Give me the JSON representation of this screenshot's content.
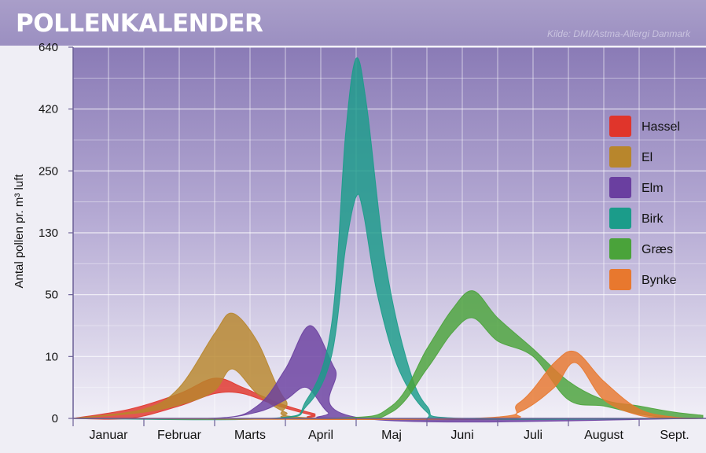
{
  "header": {
    "title": "POLLENKALENDER",
    "source": "Kilde: DMI/Astma-Allergi Danmark"
  },
  "chart_data": {
    "type": "area",
    "title": "POLLENKALENDER",
    "ylabel": "Antal pollen pr. m³ luft",
    "xlabel": "",
    "yticks": [
      0,
      10,
      50,
      130,
      250,
      420,
      640
    ],
    "categories": [
      "Januar",
      "Februar",
      "Marts",
      "April",
      "Maj",
      "Juni",
      "Juli",
      "August",
      "Sept."
    ],
    "x_unit": "month (0 = start of Januar)",
    "legend_position": "right",
    "grid": true,
    "series": [
      {
        "name": "Hassel",
        "color": "#e0352b",
        "lower": [
          [
            0.0,
            0
          ],
          [
            0.8,
            0
          ],
          [
            1.5,
            2
          ],
          [
            2.0,
            4
          ],
          [
            2.4,
            4
          ],
          [
            2.9,
            2
          ],
          [
            3.4,
            0.5
          ],
          [
            3.8,
            0
          ],
          [
            8.9,
            0
          ]
        ],
        "upper": [
          [
            0.0,
            0
          ],
          [
            0.8,
            1.5
          ],
          [
            1.5,
            4
          ],
          [
            2.0,
            6.5
          ],
          [
            2.4,
            5
          ],
          [
            2.9,
            2.5
          ],
          [
            3.4,
            0.8
          ],
          [
            3.8,
            0
          ],
          [
            8.9,
            0
          ]
        ]
      },
      {
        "name": "El",
        "color": "#b8862c",
        "lower": [
          [
            0.0,
            0
          ],
          [
            1.0,
            1
          ],
          [
            1.6,
            2.5
          ],
          [
            2.0,
            4.5
          ],
          [
            2.25,
            8
          ],
          [
            2.6,
            4
          ],
          [
            3.0,
            1
          ],
          [
            3.5,
            0
          ],
          [
            8.9,
            0
          ]
        ],
        "upper": [
          [
            0.0,
            0
          ],
          [
            1.0,
            1.5
          ],
          [
            1.5,
            5
          ],
          [
            2.0,
            25
          ],
          [
            2.25,
            38
          ],
          [
            2.6,
            20
          ],
          [
            3.0,
            3
          ],
          [
            3.5,
            0
          ],
          [
            8.9,
            0
          ]
        ]
      },
      {
        "name": "Elm",
        "color": "#6a3fa0",
        "lower": [
          [
            0.0,
            0
          ],
          [
            1.9,
            0
          ],
          [
            2.6,
            1
          ],
          [
            3.0,
            3
          ],
          [
            3.3,
            5
          ],
          [
            3.6,
            1
          ],
          [
            3.9,
            0
          ],
          [
            8.9,
            0
          ]
        ],
        "upper": [
          [
            0.0,
            0
          ],
          [
            2.0,
            0
          ],
          [
            2.6,
            2
          ],
          [
            3.0,
            8
          ],
          [
            3.35,
            30
          ],
          [
            3.7,
            8
          ],
          [
            4.1,
            0
          ],
          [
            8.9,
            0
          ]
        ]
      },
      {
        "name": "Birk",
        "color": "#1b9c8a",
        "lower": [
          [
            0.0,
            0
          ],
          [
            2.8,
            0
          ],
          [
            3.3,
            2
          ],
          [
            3.65,
            10
          ],
          [
            3.85,
            110
          ],
          [
            4.0,
            200
          ],
          [
            4.1,
            170
          ],
          [
            4.3,
            50
          ],
          [
            4.6,
            8
          ],
          [
            5.0,
            1
          ],
          [
            5.4,
            0
          ],
          [
            8.9,
            0
          ]
        ],
        "upper": [
          [
            0.0,
            0
          ],
          [
            2.8,
            0
          ],
          [
            3.3,
            3
          ],
          [
            3.65,
            30
          ],
          [
            3.85,
            350
          ],
          [
            4.0,
            600
          ],
          [
            4.15,
            430
          ],
          [
            4.4,
            100
          ],
          [
            4.7,
            10
          ],
          [
            5.0,
            2
          ],
          [
            5.5,
            0
          ],
          [
            8.9,
            0
          ]
        ]
      },
      {
        "name": "Græs",
        "color": "#4aa33a",
        "lower": [
          [
            0.0,
            0
          ],
          [
            3.7,
            0
          ],
          [
            4.5,
            1
          ],
          [
            5.0,
            8
          ],
          [
            5.35,
            25
          ],
          [
            5.65,
            35
          ],
          [
            6.0,
            20
          ],
          [
            6.5,
            10
          ],
          [
            7.0,
            3
          ],
          [
            7.5,
            2
          ],
          [
            8.0,
            0.7
          ],
          [
            8.5,
            0
          ],
          [
            8.9,
            0
          ]
        ],
        "upper": [
          [
            0.0,
            0
          ],
          [
            3.6,
            0
          ],
          [
            4.5,
            2
          ],
          [
            5.0,
            15
          ],
          [
            5.35,
            40
          ],
          [
            5.65,
            55
          ],
          [
            6.0,
            35
          ],
          [
            6.5,
            15
          ],
          [
            7.0,
            6
          ],
          [
            7.5,
            3
          ],
          [
            8.0,
            2
          ],
          [
            8.5,
            1
          ],
          [
            8.9,
            0.5
          ]
        ]
      },
      {
        "name": "Bynke",
        "color": "#e8782e",
        "lower": [
          [
            0.0,
            0
          ],
          [
            5.7,
            0
          ],
          [
            6.3,
            1
          ],
          [
            6.8,
            5
          ],
          [
            7.1,
            9
          ],
          [
            7.5,
            3
          ],
          [
            8.0,
            0.5
          ],
          [
            8.5,
            0
          ],
          [
            8.9,
            0
          ]
        ],
        "upper": [
          [
            0.0,
            0
          ],
          [
            5.6,
            0
          ],
          [
            6.3,
            2.5
          ],
          [
            6.8,
            9
          ],
          [
            7.1,
            13
          ],
          [
            7.5,
            6
          ],
          [
            8.0,
            1.5
          ],
          [
            8.5,
            0.2
          ],
          [
            8.9,
            0
          ]
        ]
      }
    ]
  }
}
